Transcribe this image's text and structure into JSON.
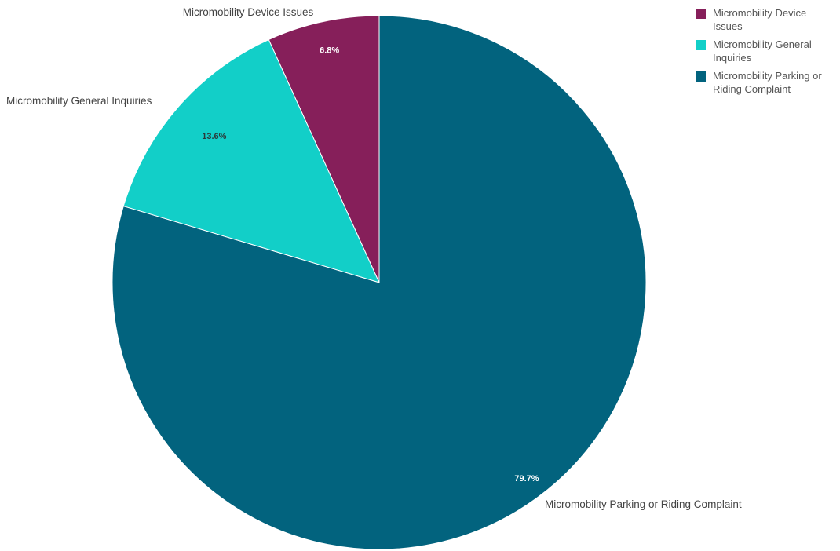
{
  "chart_data": {
    "type": "pie",
    "title": "",
    "series": [
      {
        "categories": [
          "Micromobility Device Issues",
          "Micromobility General Inquiries",
          "Micromobility Parking or Riding Complaint"
        ],
        "values": [
          6.8,
          13.6,
          79.7
        ],
        "labels": [
          "6.8%",
          "13.6%",
          "79.7%"
        ],
        "colors": [
          "#861f5a",
          "#12cfc8",
          "#02637e"
        ]
      }
    ],
    "start_angle_deg": 0,
    "direction": "counterclockwise",
    "legend": {
      "position": "top-right",
      "entries": [
        "Micromobility Device Issues",
        "Micromobility General Inquiries",
        "Micromobility Parking or Riding Complaint"
      ]
    }
  }
}
